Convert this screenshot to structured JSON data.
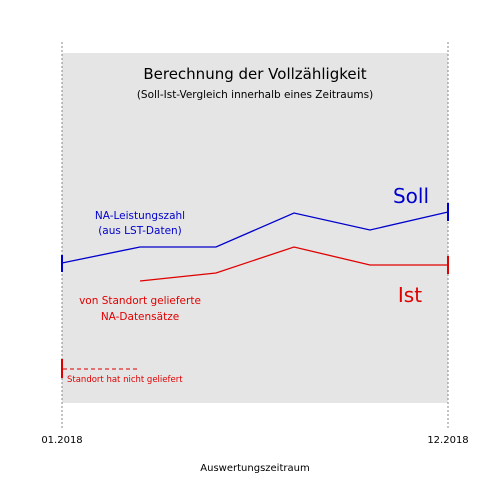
{
  "title": "Berechnung der Vollzähligkeit",
  "subtitle": "(Soll-Ist-Vergleich innerhalb eines Zeitraums)",
  "soll": {
    "label": "Soll",
    "annotation_line1": "NA-Leistungszahl",
    "annotation_line2": "(aus LST-Daten)",
    "color": "#0000cc"
  },
  "ist": {
    "label": "Ist",
    "annotation_line1": "von Standort gelieferte",
    "annotation_line2": "NA-Datensätze",
    "color": "#e00000"
  },
  "missing": {
    "label": "Standort hat nicht geliefert",
    "color": "#e00000"
  },
  "axis": {
    "start_label": "01.2018",
    "end_label": "12.2018",
    "xlabel": "Auswertungszeitraum"
  },
  "colors": {
    "panel": "#e5e5e5",
    "guide": "#888888",
    "text": "#000000"
  }
}
